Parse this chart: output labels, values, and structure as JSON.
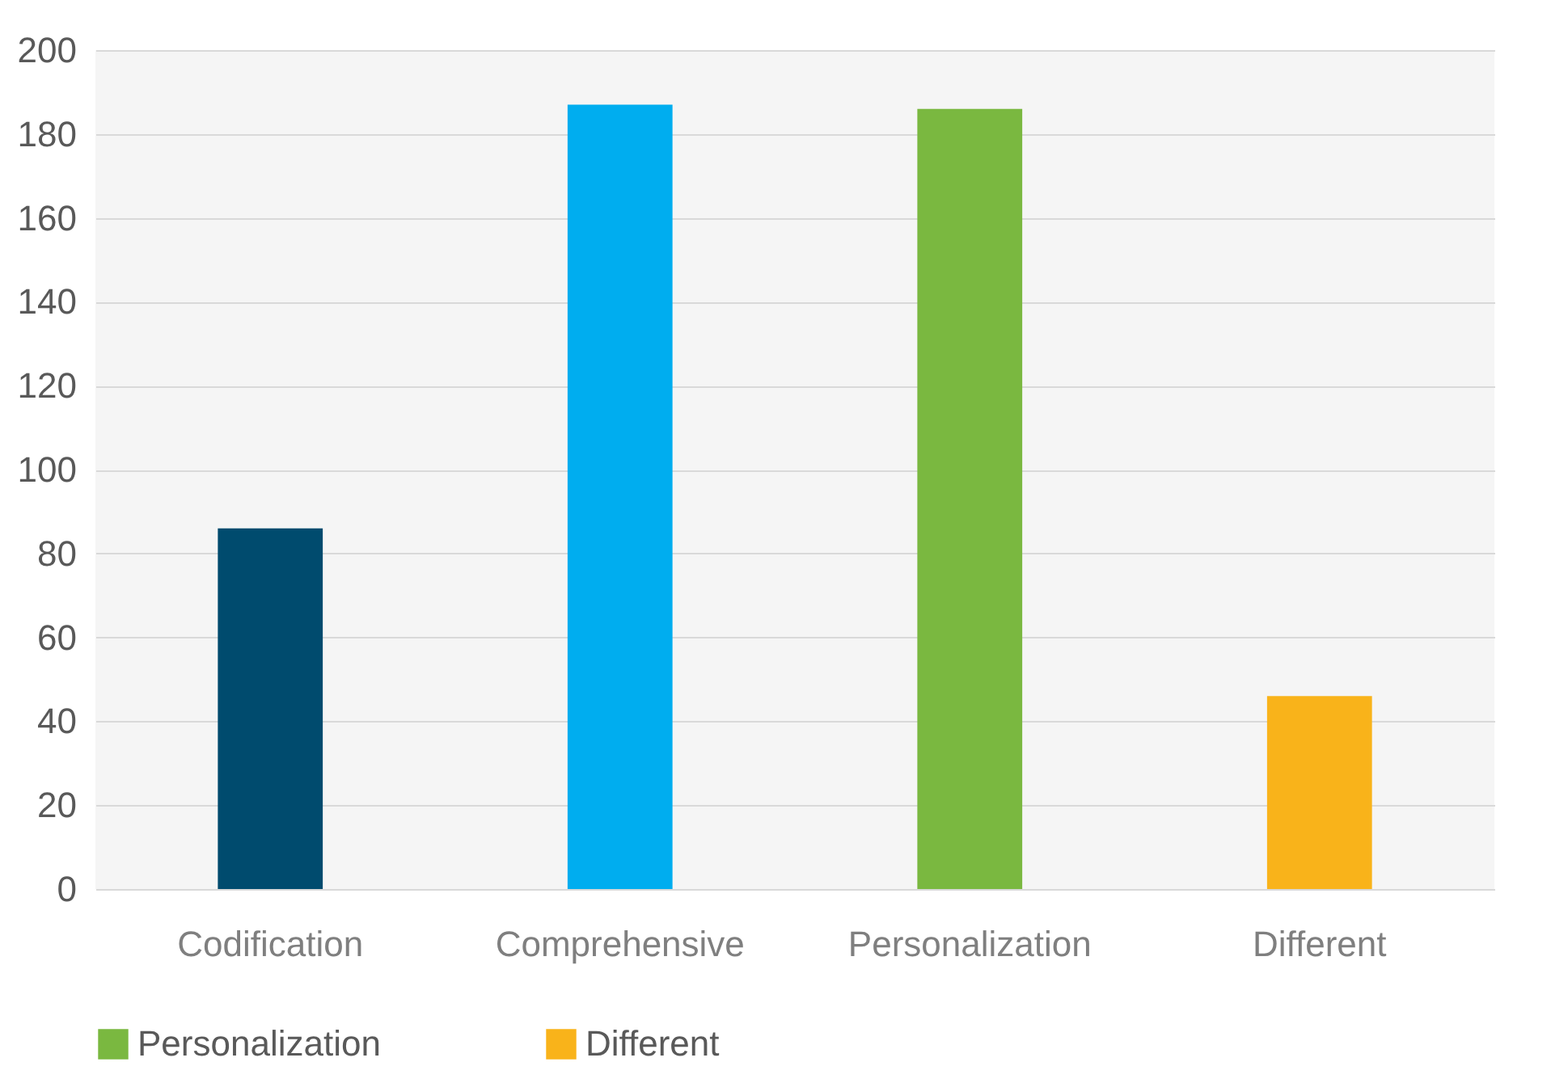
{
  "chart_data": {
    "type": "bar",
    "categories": [
      "Codification",
      "Comprehensive",
      "Personalization",
      "Different"
    ],
    "series": [
      {
        "color": "#004b6e",
        "values": [
          86,
          null,
          null,
          null
        ]
      },
      {
        "color": "#00adef",
        "values": [
          null,
          187,
          null,
          null
        ]
      },
      {
        "name": "Personalization",
        "color": "#7ab840",
        "values": [
          null,
          null,
          186,
          null
        ]
      },
      {
        "name": "Different",
        "color": "#f9b31a",
        "values": [
          null,
          null,
          null,
          46
        ]
      }
    ],
    "stacked": true,
    "ylim": [
      0,
      200
    ],
    "yticks": [
      0,
      20,
      40,
      60,
      80,
      100,
      120,
      140,
      160,
      180,
      200
    ],
    "grid": "y",
    "legend": "bottom"
  }
}
